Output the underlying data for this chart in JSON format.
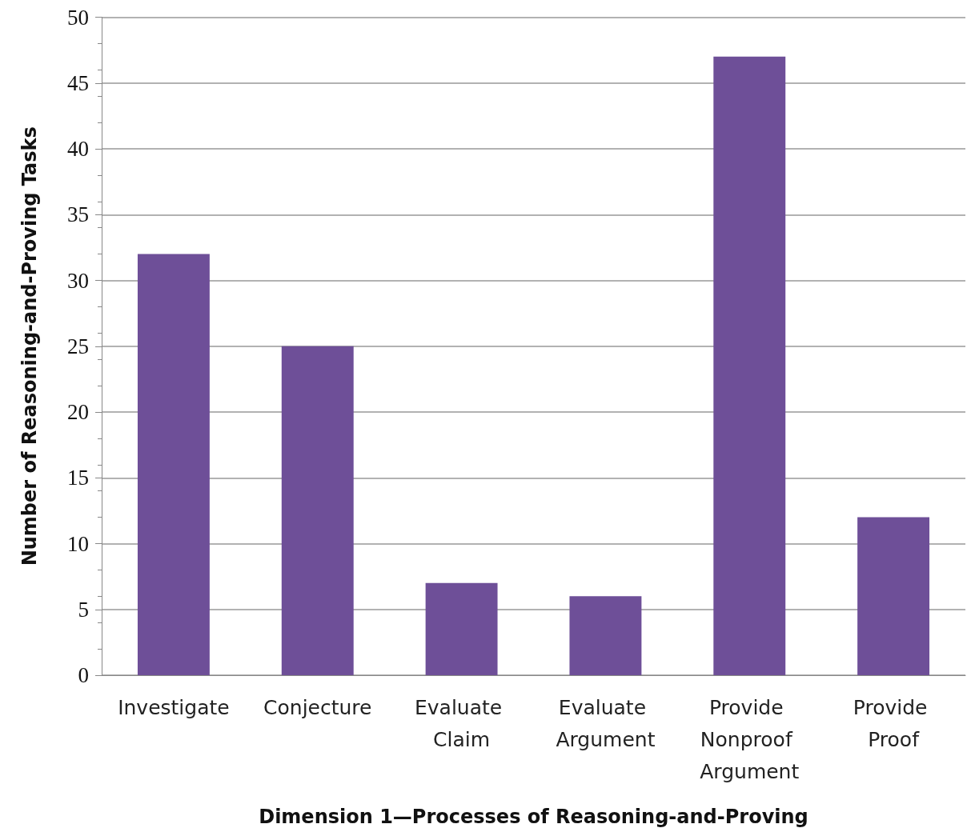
{
  "chart_data": {
    "type": "bar",
    "xlabel": "Dimension 1—Processes of Reasoning-and-Proving",
    "ylabel": "Number of Reasoning-and-Proving Tasks",
    "categories": [
      "Investigate",
      "Conjecture",
      "Evaluate Claim",
      "Evaluate Argument",
      "Provide Nonproof Argument",
      "Provide Proof"
    ],
    "values": [
      32,
      25,
      7,
      6,
      47,
      12
    ],
    "color": "#6e4f98",
    "ylim": [
      0,
      50
    ],
    "yticks": [
      0,
      5,
      10,
      15,
      20,
      25,
      30,
      35,
      40,
      45,
      50
    ],
    "grid": "y"
  }
}
